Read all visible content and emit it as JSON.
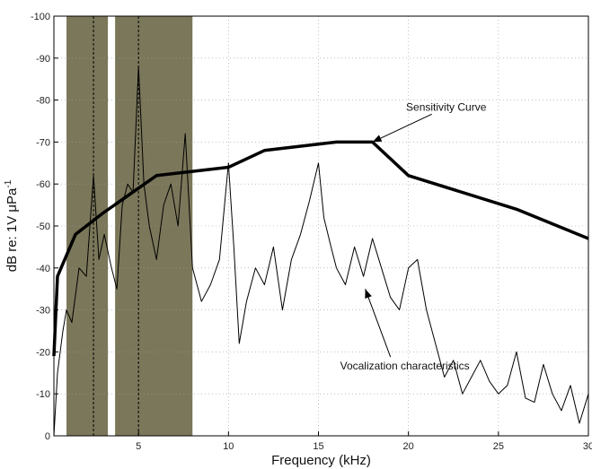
{
  "chart_data": {
    "type": "line",
    "xlabel": "Frequency (kHz)",
    "ylabel": "dB re: 1V μPa",
    "ylabel_superscript": "-1",
    "xlim": [
      0.3,
      30
    ],
    "ylim": [
      0,
      -100
    ],
    "x_ticks": [
      5,
      10,
      15,
      20,
      25,
      30
    ],
    "y_ticks": [
      0,
      -10,
      -20,
      -30,
      -40,
      -50,
      -60,
      -70,
      -80,
      -90,
      -100
    ],
    "y_tick_labels": [
      "0",
      "-10",
      "-20",
      "-30",
      "-40",
      "-50",
      "-60",
      "-70",
      "-80",
      "-90",
      "-100"
    ],
    "grid": true,
    "shaded_bands": [
      {
        "x_start": 1.0,
        "x_end": 3.5,
        "color": "#7b775a"
      },
      {
        "x_start": 3.5,
        "x_end": 8.0,
        "color": "#7b775a"
      }
    ],
    "dashed_markers_x": [
      2.5,
      5.0
    ],
    "series": [
      {
        "style": "thick",
        "color": "#000000",
        "x": [
          0.3,
          0.5,
          1.5,
          3,
          6,
          10,
          12,
          16,
          18,
          20,
          26,
          30
        ],
        "y": [
          -19,
          -38,
          -48,
          -53,
          -62,
          -64,
          -68,
          -70,
          -70,
          -62,
          -54,
          -47
        ]
      },
      {
        "style": "thin",
        "color": "#000000",
        "x": [
          0.3,
          0.5,
          0.8,
          1.0,
          1.3,
          1.7,
          2.1,
          2.5,
          2.8,
          3.1,
          3.5,
          3.8,
          4.1,
          4.4,
          4.7,
          5.0,
          5.3,
          5.6,
          6.0,
          6.4,
          6.8,
          7.2,
          7.6,
          8.0,
          8.5,
          9.0,
          9.5,
          10.0,
          10.3,
          10.6,
          11.0,
          11.5,
          12.0,
          12.5,
          13.0,
          13.5,
          14.0,
          14.5,
          15.0,
          15.3,
          15.7,
          16.0,
          16.5,
          17.0,
          17.5,
          18.0,
          18.5,
          19.0,
          19.5,
          20.0,
          20.5,
          21.0,
          21.5,
          22.0,
          22.5,
          23.0,
          23.5,
          24.0,
          24.5,
          25.0,
          25.5,
          26.0,
          26.5,
          27.0,
          27.5,
          28.0,
          28.5,
          29.0,
          29.5,
          30.0
        ],
        "y": [
          0,
          -15,
          -25,
          -30,
          -27,
          -40,
          -38,
          -62,
          -42,
          -48,
          -40,
          -35,
          -55,
          -60,
          -58,
          -88,
          -60,
          -50,
          -42,
          -55,
          -60,
          -50,
          -72,
          -40,
          -32,
          -36,
          -42,
          -65,
          -45,
          -22,
          -32,
          -40,
          -36,
          -45,
          -30,
          -42,
          -48,
          -56,
          -65,
          -52,
          -45,
          -40,
          -36,
          -45,
          -38,
          -47,
          -40,
          -33,
          -30,
          -40,
          -42,
          -30,
          -22,
          -14,
          -18,
          -10,
          -14,
          -18,
          -13,
          -10,
          -12,
          -20,
          -9,
          -8,
          -17,
          -10,
          -6,
          -12,
          -3,
          -10
        ]
      }
    ],
    "annotations": [
      {
        "text": "Sensitivity Curve",
        "x": 22.1,
        "y": -77.5,
        "arrow_to": [
          18.0,
          -70.0
        ]
      },
      {
        "text": "Vocalization characteristics",
        "x": 19.8,
        "y": -15.8,
        "arrow_to": [
          17.6,
          -35.0
        ]
      }
    ]
  }
}
